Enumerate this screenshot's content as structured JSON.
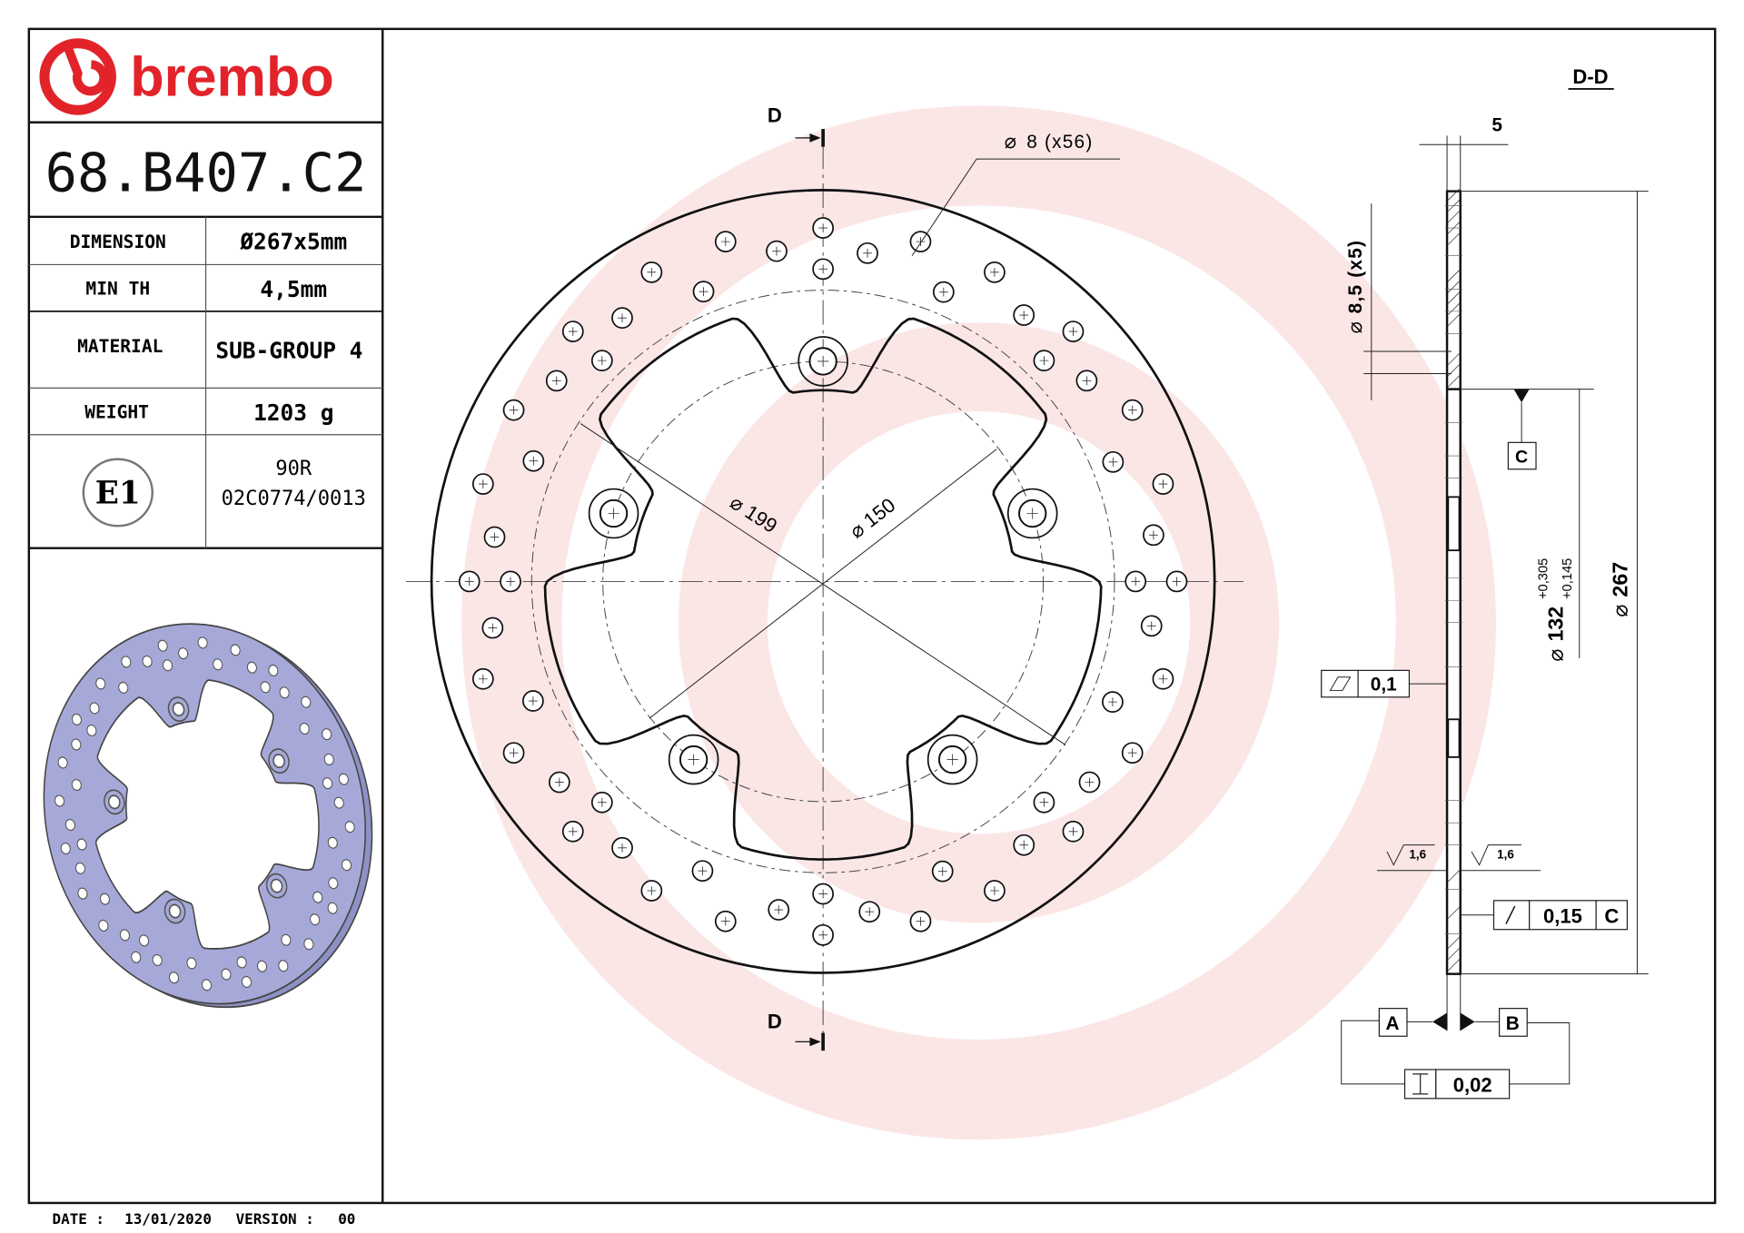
{
  "logo": {
    "text": "brembo",
    "color": "#e2232a"
  },
  "part_number": "68.B407.C2",
  "specs": [
    {
      "label": "DIMENSION",
      "value": "Ø267x5mm"
    },
    {
      "label": "MIN TH",
      "value": "4,5mm"
    },
    {
      "label": "MATERIAL",
      "value": "SUB-GROUP 4"
    },
    {
      "label": "WEIGHT",
      "value": "1203 g"
    }
  ],
  "homologation": {
    "mark": "E1",
    "line1": "90R",
    "line2": "02C0774/0013"
  },
  "footer": {
    "date_label": "DATE :",
    "date": "13/01/2020",
    "version_label": "VERSION :",
    "version": "00"
  },
  "front_view": {
    "section_mark_top": "D",
    "section_mark_bottom": "D",
    "holes_label": "8 (x56)",
    "dia_199": "199",
    "dia_150": "150",
    "diameter_symbol": "⌀"
  },
  "section_view": {
    "title": "D-D",
    "thickness": "5",
    "bolt_hole": "8,5 (x5)",
    "center_bore": "132",
    "tol_upper": "+0,305",
    "tol_lower": "+0,145",
    "outer_dia": "267",
    "datum_c": "C",
    "flatness": "0,1",
    "roughness_left": "1,6",
    "roughness_right": "1,6",
    "runout": "0,15",
    "runout_datum": "C",
    "datum_a": "A",
    "datum_b": "B",
    "parallelism": "0,02"
  },
  "colors": {
    "illustration_fill": "#a6a9d8",
    "watermark": "#f7d0d0"
  }
}
